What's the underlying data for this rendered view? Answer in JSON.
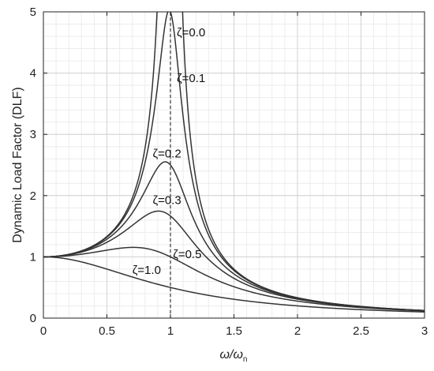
{
  "chart_data": {
    "type": "line",
    "title": "",
    "xlabel": "ω/ω",
    "xlabel_subscript": "n",
    "ylabel": "Dynamic Load Factor (DLF)",
    "xlim": [
      0,
      3
    ],
    "ylim": [
      0,
      5
    ],
    "xticks": [
      0,
      0.5,
      1,
      1.5,
      2,
      2.5,
      3
    ],
    "xtick_labels": [
      "0",
      "0.5",
      "1",
      "1.5",
      "2",
      "2.5",
      "3"
    ],
    "yticks": [
      0,
      1,
      2,
      3,
      4,
      5
    ],
    "ytick_labels": [
      "0",
      "1",
      "2",
      "3",
      "4",
      "5"
    ],
    "grid": true,
    "reference_line": {
      "x": 1,
      "style": "dashed"
    },
    "series": [
      {
        "zeta": 0.0,
        "label": "ζ=0.0",
        "label_pos": [
          1.05,
          4.6
        ]
      },
      {
        "zeta": 0.1,
        "label": "ζ=0.1",
        "label_pos": [
          1.05,
          3.85
        ]
      },
      {
        "zeta": 0.2,
        "label": "ζ=0.2",
        "label_pos": [
          0.86,
          2.62
        ]
      },
      {
        "zeta": 0.3,
        "label": "ζ=0.3",
        "label_pos": [
          0.86,
          1.86
        ]
      },
      {
        "zeta": 0.5,
        "label": "ζ=0.5",
        "label_pos": [
          1.02,
          0.98
        ]
      },
      {
        "zeta": 1.0,
        "label": "ζ=1.0",
        "label_pos": [
          0.7,
          0.72
        ]
      }
    ]
  }
}
